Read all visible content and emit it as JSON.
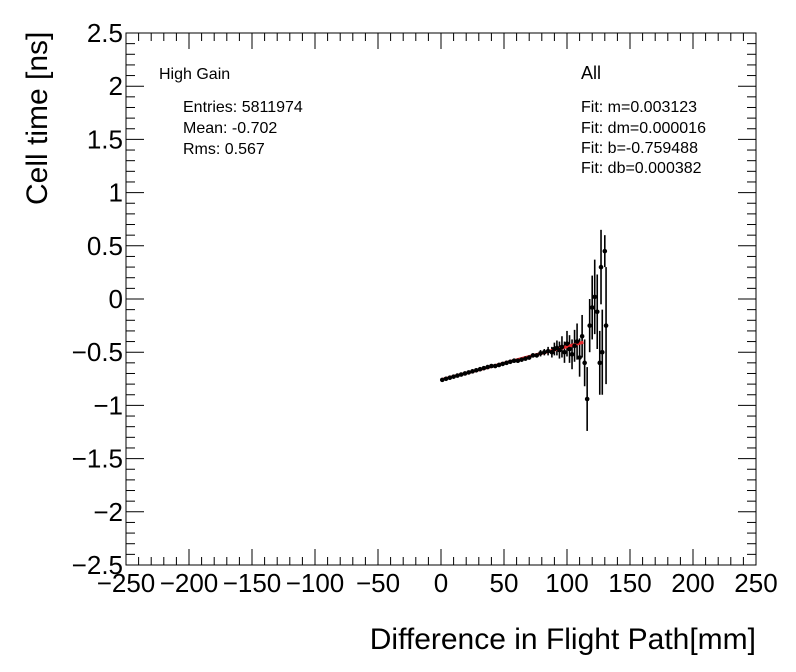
{
  "chart_data": {
    "type": "scatter",
    "xlabel": "Difference in Flight Path[mm]",
    "ylabel": "Cell time [ns]",
    "xlim": [
      -250,
      250
    ],
    "ylim": [
      -2.5,
      2.5
    ],
    "x_ticks": [
      -250,
      -200,
      -150,
      -100,
      -50,
      0,
      50,
      100,
      150,
      200,
      250
    ],
    "x_tick_labels": [
      "−250",
      "−200",
      "−150",
      "−100",
      "−50",
      "0",
      "50",
      "100",
      "150",
      "200",
      "250"
    ],
    "y_ticks": [
      -2.5,
      -2,
      -1.5,
      -1,
      -0.5,
      0,
      0.5,
      1,
      1.5,
      2,
      2.5
    ],
    "y_tick_labels": [
      "−2.5",
      "−2",
      "−1.5",
      "−1",
      "−0.5",
      "0",
      "0.5",
      "1",
      "1.5",
      "2",
      "2.5"
    ],
    "grid": false,
    "annotations": {
      "gain": "High Gain",
      "entries": "Entries: 5811974",
      "mean": "Mean: -0.702",
      "rms": "Rms: 0.567",
      "selection": "All",
      "fit_m": "Fit: m=0.003123",
      "fit_dm": "Fit: dm=0.000016",
      "fit_b": "Fit: b=-0.759488",
      "fit_db": "Fit: db=0.000382"
    },
    "fit_line": {
      "slope": 0.003123,
      "intercept": -0.759488,
      "x_range": [
        0,
        113
      ],
      "color": "#e8282b"
    },
    "marker_color": "#000000",
    "points": [
      [
        1,
        -0.76,
        0.01
      ],
      [
        4,
        -0.75,
        0.01
      ],
      [
        7,
        -0.74,
        0.01
      ],
      [
        10,
        -0.73,
        0.01
      ],
      [
        13,
        -0.72,
        0.01
      ],
      [
        16,
        -0.71,
        0.01
      ],
      [
        19,
        -0.7,
        0.01
      ],
      [
        22,
        -0.69,
        0.01
      ],
      [
        25,
        -0.68,
        0.01
      ],
      [
        28,
        -0.67,
        0.01
      ],
      [
        31,
        -0.66,
        0.01
      ],
      [
        34,
        -0.65,
        0.01
      ],
      [
        37,
        -0.64,
        0.01
      ],
      [
        40,
        -0.63,
        0.01
      ],
      [
        43,
        -0.63,
        0.01
      ],
      [
        46,
        -0.62,
        0.01
      ],
      [
        49,
        -0.61,
        0.01
      ],
      [
        52,
        -0.6,
        0.01
      ],
      [
        55,
        -0.59,
        0.01
      ],
      [
        58,
        -0.58,
        0.01
      ],
      [
        61,
        -0.58,
        0.01
      ],
      [
        64,
        -0.57,
        0.01
      ],
      [
        67,
        -0.56,
        0.02
      ],
      [
        70,
        -0.55,
        0.02
      ],
      [
        73,
        -0.53,
        0.02
      ],
      [
        76,
        -0.53,
        0.02
      ],
      [
        79,
        -0.51,
        0.03
      ],
      [
        82,
        -0.5,
        0.03
      ],
      [
        85,
        -0.49,
        0.04
      ],
      [
        88,
        -0.5,
        0.05
      ],
      [
        90,
        -0.47,
        0.06
      ],
      [
        92,
        -0.46,
        0.07
      ],
      [
        94,
        -0.48,
        0.08
      ],
      [
        96,
        -0.45,
        0.1
      ],
      [
        98,
        -0.5,
        0.1
      ],
      [
        100,
        -0.42,
        0.12
      ],
      [
        102,
        -0.47,
        0.13
      ],
      [
        104,
        -0.52,
        0.14
      ],
      [
        106,
        -0.44,
        0.15
      ],
      [
        108,
        -0.4,
        0.17
      ],
      [
        110,
        -0.55,
        0.18
      ],
      [
        112,
        -0.35,
        0.2
      ],
      [
        114,
        -0.6,
        0.22
      ],
      [
        116,
        -0.94,
        0.3
      ],
      [
        118,
        -0.25,
        0.25
      ],
      [
        120,
        -0.08,
        0.3
      ],
      [
        122,
        0.02,
        0.35
      ],
      [
        124,
        -0.12,
        0.35
      ],
      [
        126,
        -0.6,
        0.3
      ],
      [
        127,
        0.3,
        0.35
      ],
      [
        128,
        -0.5,
        0.4
      ],
      [
        130,
        0.45,
        0.15
      ],
      [
        131,
        -0.25,
        0.55
      ]
    ]
  }
}
